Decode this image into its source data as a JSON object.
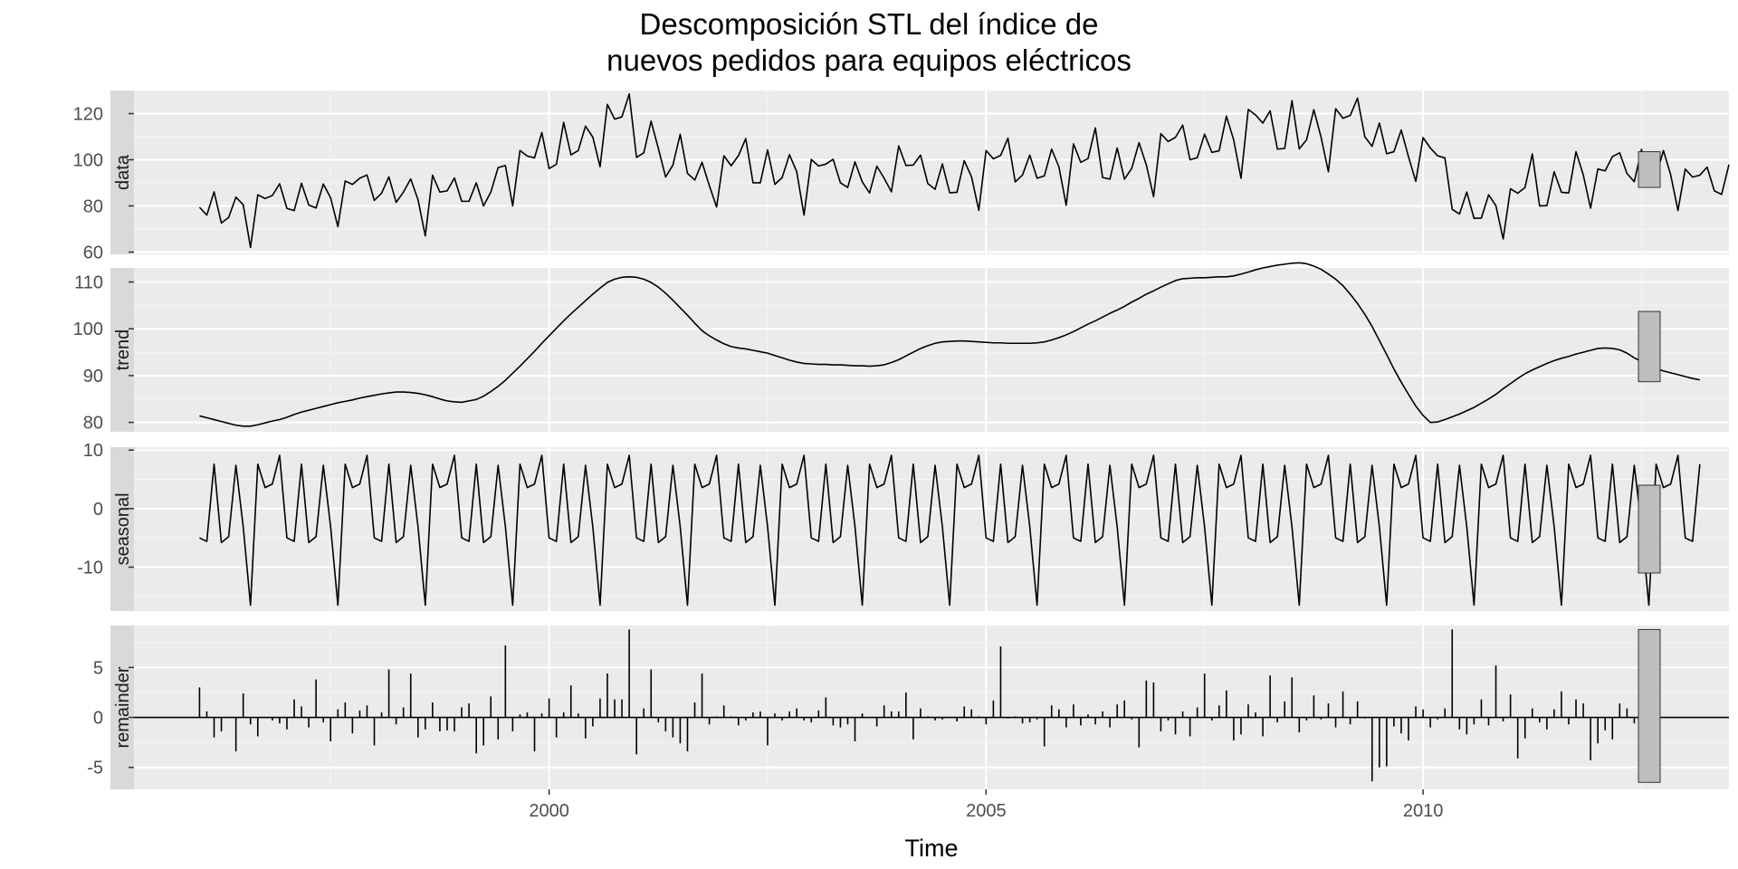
{
  "chart_data": {
    "type": "line",
    "title": "Descomposición STL del índice de",
    "title_line2": "nuevos pedidos para equipos eléctricos",
    "xlabel": "Time",
    "xlim": [
      1995.25,
      2013.5
    ],
    "x_ticks": [
      2000,
      2005,
      2010
    ],
    "x_tick_labels": [
      "2000",
      "2005",
      "2010"
    ],
    "start": 1996.0,
    "frequency": 12,
    "grid": true,
    "panels": [
      {
        "name": "data",
        "type": "line",
        "ylim": [
          59,
          130
        ],
        "y_ticks": [
          60,
          80,
          100,
          120
        ],
        "y_tick_labels": [
          "60",
          "80",
          "100",
          "120"
        ],
        "range_bar": [
          88,
          103.5
        ],
        "values": [
          79.4,
          76.0,
          86.1,
          72.6,
          75.0,
          83.8,
          80.5,
          62.0,
          84.8,
          83.2,
          84.5,
          89.6,
          78.9,
          78.0,
          89.8,
          80.4,
          79.1,
          89.5,
          83.5,
          71.0,
          90.8,
          89.3,
          92.0,
          93.4,
          82.4,
          85.5,
          92.6,
          81.5,
          86.0,
          91.7,
          82.7,
          67.0,
          93.3,
          86.0,
          86.5,
          92.1,
          82.0,
          82.0,
          90.0,
          80.0,
          86.0,
          96.6,
          97.5,
          80.0,
          104.0,
          101.6,
          100.8,
          111.8,
          96.2,
          98.0,
          116.2,
          102.1,
          104.0,
          114.6,
          109.8,
          97.0,
          124.0,
          117.6,
          118.6,
          128.5,
          101.0,
          103.0,
          116.7,
          104.9,
          92.5,
          97.7,
          111.0,
          94.1,
          91.2,
          98.9,
          88.8,
          79.5,
          101.7,
          97.4,
          101.8,
          109.2,
          90.0,
          90.0,
          104.3,
          89.3,
          92.3,
          102.2,
          94.8,
          76.0,
          100.1,
          97.3,
          98.1,
          100.2,
          90.0,
          88.0,
          99.1,
          90.4,
          85.6,
          97.2,
          92.0,
          86.1,
          106.0,
          97.5,
          97.7,
          102.0,
          89.7,
          87.2,
          98.2,
          85.7,
          85.9,
          99.6,
          92.6,
          78.1,
          104.0,
          100.4,
          101.9,
          109.4,
          90.4,
          93.4,
          102.0,
          92.0,
          93.0,
          104.6,
          96.9,
          80.3,
          106.9,
          98.9,
          100.5,
          113.8,
          92.3,
          91.6,
          105.1,
          91.6,
          96.3,
          107.4,
          97.8,
          84.0,
          111.3,
          107.9,
          109.7,
          115.0,
          100.0,
          100.9,
          111.1,
          103.2,
          103.9,
          118.9,
          108.6,
          92.0,
          121.8,
          119.4,
          115.9,
          121.2,
          104.6,
          104.9,
          125.6,
          104.7,
          108.6,
          121.7,
          109.7,
          94.8,
          122.1,
          118.0,
          119.2,
          126.7,
          110.0,
          105.8,
          115.9,
          102.6,
          103.5,
          112.9,
          101.3,
          90.6,
          109.6,
          105.1,
          101.7,
          100.8,
          78.5,
          76.5,
          86.0,
          74.6,
          74.7,
          84.8,
          80.1,
          65.7,
          87.4,
          85.5,
          88.0,
          102.5,
          80.0,
          80.1,
          94.8,
          85.9,
          85.6,
          103.5,
          93.4,
          79.0,
          96.0,
          95.2,
          101.4,
          103.0,
          94.0,
          90.5,
          104.5,
          90.5,
          92.9,
          104.0,
          93.5,
          78.0,
          96.0,
          92.5,
          93.3,
          96.8,
          86.5,
          85.0,
          97.9
        ]
      },
      {
        "name": "trend",
        "type": "line",
        "ylim": [
          78,
          113
        ],
        "y_ticks": [
          80,
          90,
          100,
          110
        ],
        "y_tick_labels": [
          "80",
          "90",
          "100",
          "110"
        ],
        "range_bar": [
          88.7,
          103.7
        ],
        "values": [
          81.4,
          81.0,
          80.6,
          80.2,
          79.8,
          79.4,
          79.2,
          79.2,
          79.5,
          79.9,
          80.3,
          80.6,
          81.1,
          81.7,
          82.2,
          82.6,
          83.0,
          83.4,
          83.8,
          84.2,
          84.5,
          84.8,
          85.2,
          85.5,
          85.8,
          86.1,
          86.3,
          86.5,
          86.5,
          86.4,
          86.2,
          85.9,
          85.5,
          85.0,
          84.6,
          84.4,
          84.3,
          84.6,
          84.9,
          85.6,
          86.6,
          87.7,
          89.0,
          90.5,
          92.0,
          93.6,
          95.2,
          96.9,
          98.5,
          100.1,
          101.7,
          103.2,
          104.6,
          106.0,
          107.4,
          108.7,
          109.9,
          110.6,
          111.0,
          111.1,
          111.0,
          110.6,
          109.9,
          108.9,
          107.6,
          106.1,
          104.5,
          102.9,
          101.2,
          99.6,
          98.5,
          97.6,
          96.8,
          96.2,
          95.9,
          95.7,
          95.4,
          95.1,
          94.8,
          94.3,
          93.8,
          93.3,
          92.9,
          92.6,
          92.5,
          92.4,
          92.4,
          92.3,
          92.3,
          92.2,
          92.1,
          92.1,
          92.0,
          92.1,
          92.3,
          92.8,
          93.4,
          94.2,
          95.0,
          95.8,
          96.4,
          96.9,
          97.2,
          97.3,
          97.4,
          97.4,
          97.3,
          97.2,
          97.1,
          97.0,
          97.0,
          96.9,
          96.9,
          96.9,
          96.9,
          97.0,
          97.2,
          97.6,
          98.1,
          98.7,
          99.4,
          100.2,
          101.0,
          101.7,
          102.5,
          103.3,
          104.0,
          104.8,
          105.7,
          106.5,
          107.4,
          108.1,
          108.9,
          109.6,
          110.3,
          110.7,
          110.8,
          110.9,
          110.9,
          111.0,
          111.1,
          111.1,
          111.3,
          111.7,
          112.1,
          112.6,
          113.0,
          113.3,
          113.6,
          113.8,
          114.0,
          114.1,
          113.9,
          113.4,
          112.7,
          111.7,
          110.6,
          109.2,
          107.4,
          105.4,
          103.1,
          100.5,
          97.5,
          94.5,
          91.4,
          88.6,
          86.0,
          83.5,
          81.5,
          80.0,
          80.1,
          80.6,
          81.2,
          81.8,
          82.5,
          83.2,
          84.1,
          85.0,
          86.0,
          87.2,
          88.3,
          89.4,
          90.4,
          91.2,
          91.9,
          92.6,
          93.2,
          93.7,
          94.1,
          94.6,
          95.0,
          95.4,
          95.8,
          95.9,
          95.8,
          95.5,
          94.8,
          93.8,
          93.0,
          92.2,
          91.5,
          91.0,
          90.6,
          90.2,
          89.8,
          89.4,
          89.1
        ]
      },
      {
        "name": "seasonal",
        "type": "line",
        "ylim": [
          -17.5,
          10.5
        ],
        "y_ticks": [
          -10,
          0,
          10
        ],
        "y_tick_labels": [
          "-10",
          "0",
          "10"
        ],
        "range_bar": [
          -11,
          4
        ],
        "values": [
          -5.0,
          -5.6,
          7.6,
          -5.8,
          -4.8,
          7.4,
          -3.1,
          -16.5,
          7.6,
          3.6,
          4.2,
          9.1,
          -5.0,
          -5.6,
          7.6,
          -5.8,
          -4.8,
          7.4,
          -3.1,
          -16.5,
          7.6,
          3.6,
          4.2,
          9.1,
          -5.0,
          -5.6,
          7.6,
          -5.8,
          -4.8,
          7.4,
          -3.1,
          -16.5,
          7.6,
          3.6,
          4.2,
          9.1,
          -5.0,
          -5.6,
          7.6,
          -5.8,
          -4.8,
          7.4,
          -3.1,
          -16.5,
          7.6,
          3.6,
          4.2,
          9.1,
          -5.0,
          -5.6,
          7.6,
          -5.8,
          -4.8,
          7.4,
          -3.1,
          -16.5,
          7.6,
          3.6,
          4.2,
          9.1,
          -5.0,
          -5.6,
          7.6,
          -5.8,
          -4.8,
          7.4,
          -3.1,
          -16.5,
          7.6,
          3.6,
          4.2,
          9.1,
          -5.0,
          -5.6,
          7.6,
          -5.8,
          -4.8,
          7.4,
          -3.1,
          -16.5,
          7.6,
          3.6,
          4.2,
          9.1,
          -5.0,
          -5.6,
          7.6,
          -5.8,
          -4.8,
          7.4,
          -3.1,
          -16.5,
          7.6,
          3.6,
          4.2,
          9.1,
          -5.0,
          -5.6,
          7.6,
          -5.8,
          -4.8,
          7.4,
          -3.1,
          -16.5,
          7.6,
          3.6,
          4.2,
          9.1,
          -5.0,
          -5.6,
          7.6,
          -5.8,
          -4.8,
          7.4,
          -3.1,
          -16.5,
          7.6,
          3.6,
          4.2,
          9.1,
          -5.0,
          -5.6,
          7.6,
          -5.8,
          -4.8,
          7.4,
          -3.1,
          -16.5,
          7.6,
          3.6,
          4.2,
          9.1,
          -5.0,
          -5.6,
          7.6,
          -5.8,
          -4.8,
          7.4,
          -3.1,
          -16.5,
          7.6,
          3.6,
          4.2,
          9.1,
          -5.0,
          -5.6,
          7.6,
          -5.8,
          -4.8,
          7.4,
          -3.1,
          -16.5,
          7.6,
          3.6,
          4.2,
          9.1,
          -5.0,
          -5.6,
          7.6,
          -5.8,
          -4.8,
          7.4,
          -3.1,
          -16.5,
          7.6,
          3.6,
          4.2,
          9.1,
          -5.0,
          -5.6,
          7.6,
          -5.8,
          -4.8,
          7.4,
          -3.1,
          -16.5,
          7.6,
          3.6,
          4.2,
          9.1,
          -5.0,
          -5.6,
          7.6,
          -5.8,
          -4.8,
          7.4,
          -3.1,
          -16.5,
          7.6,
          3.6,
          4.2,
          9.1,
          -5.0,
          -5.6,
          7.6,
          -5.8,
          -4.8,
          7.4,
          -3.1,
          -16.5,
          7.6,
          3.6,
          4.2,
          9.1,
          -5.0,
          -5.6,
          7.6
        ]
      },
      {
        "name": "remainder",
        "type": "bar",
        "ylim": [
          -7.2,
          9.2
        ],
        "y_ticks": [
          -5,
          0,
          5
        ],
        "y_tick_labels": [
          "-5",
          "0",
          "5"
        ],
        "range_bar": [
          -6.5,
          8.8
        ],
        "values": [
          3.0,
          0.6,
          -2.0,
          -1.4,
          0.0,
          -3.4,
          2.4,
          -0.7,
          -1.9,
          0.0,
          -0.3,
          -0.6,
          -1.2,
          1.8,
          1.1,
          -1.0,
          3.8,
          -0.5,
          -2.4,
          0.8,
          1.5,
          -1.6,
          0.7,
          1.2,
          -2.8,
          0.5,
          4.8,
          -0.7,
          1.0,
          4.4,
          -2.0,
          -1.2,
          1.5,
          -1.4,
          -1.3,
          -1.4,
          1.0,
          1.4,
          -3.6,
          -2.8,
          2.1,
          -2.2,
          7.2,
          -1.4,
          0.3,
          0.5,
          -3.4,
          0.4,
          1.9,
          -2.0,
          0.5,
          3.2,
          0.4,
          -2.1,
          -0.9,
          1.9,
          4.4,
          1.8,
          1.8,
          8.8,
          -3.7,
          0.9,
          4.8,
          -0.5,
          -1.4,
          -2.0,
          -2.6,
          -3.4,
          1.5,
          4.4,
          -0.7,
          0.1,
          1.2,
          0.1,
          -0.8,
          -0.3,
          0.5,
          0.6,
          -2.8,
          0.4,
          -0.3,
          0.6,
          0.9,
          -0.3,
          -0.5,
          0.7,
          2.0,
          -0.8,
          -1.0,
          -0.7,
          -2.4,
          0.4,
          0.0,
          -0.9,
          1.2,
          0.6,
          0.6,
          2.5,
          -2.2,
          0.9,
          0.1,
          -0.3,
          -0.2,
          0.0,
          -0.4,
          1.1,
          0.8,
          0.1,
          -0.7,
          1.7,
          7.1,
          -0.1,
          0.1,
          -0.6,
          -0.5,
          -0.2,
          -2.9,
          1.2,
          0.8,
          -1.0,
          1.3,
          -0.8,
          0.3,
          -0.7,
          0.6,
          -1.0,
          1.3,
          1.7,
          -0.2,
          -3.0,
          3.7,
          3.5,
          -1.4,
          -0.3,
          -1.7,
          0.6,
          -1.9,
          1.0,
          4.4,
          -0.3,
          1.2,
          2.7,
          -2.3,
          -1.7,
          1.3,
          0.5,
          -1.9,
          4.2,
          -0.5,
          1.6,
          4.0,
          -1.5,
          -0.3,
          2.2,
          -0.2,
          1.4,
          -1.0,
          2.6,
          -0.7,
          1.6,
          -0.1,
          -6.4,
          -5.0,
          -4.9,
          -0.9,
          -1.6,
          -2.3,
          1.1,
          0.8,
          -1.0,
          -0.2,
          0.9,
          8.8,
          -1.2,
          -1.7,
          -0.7,
          1.8,
          -0.8,
          5.2,
          -0.4,
          2.3,
          -4.1,
          -2.1,
          0.9,
          -0.5,
          -1.2,
          0.8,
          2.6,
          -0.7,
          1.8,
          1.4,
          -4.3,
          -2.6,
          -1.3,
          -2.2,
          1.4,
          0.9,
          -0.6,
          0.4
        ]
      }
    ]
  }
}
